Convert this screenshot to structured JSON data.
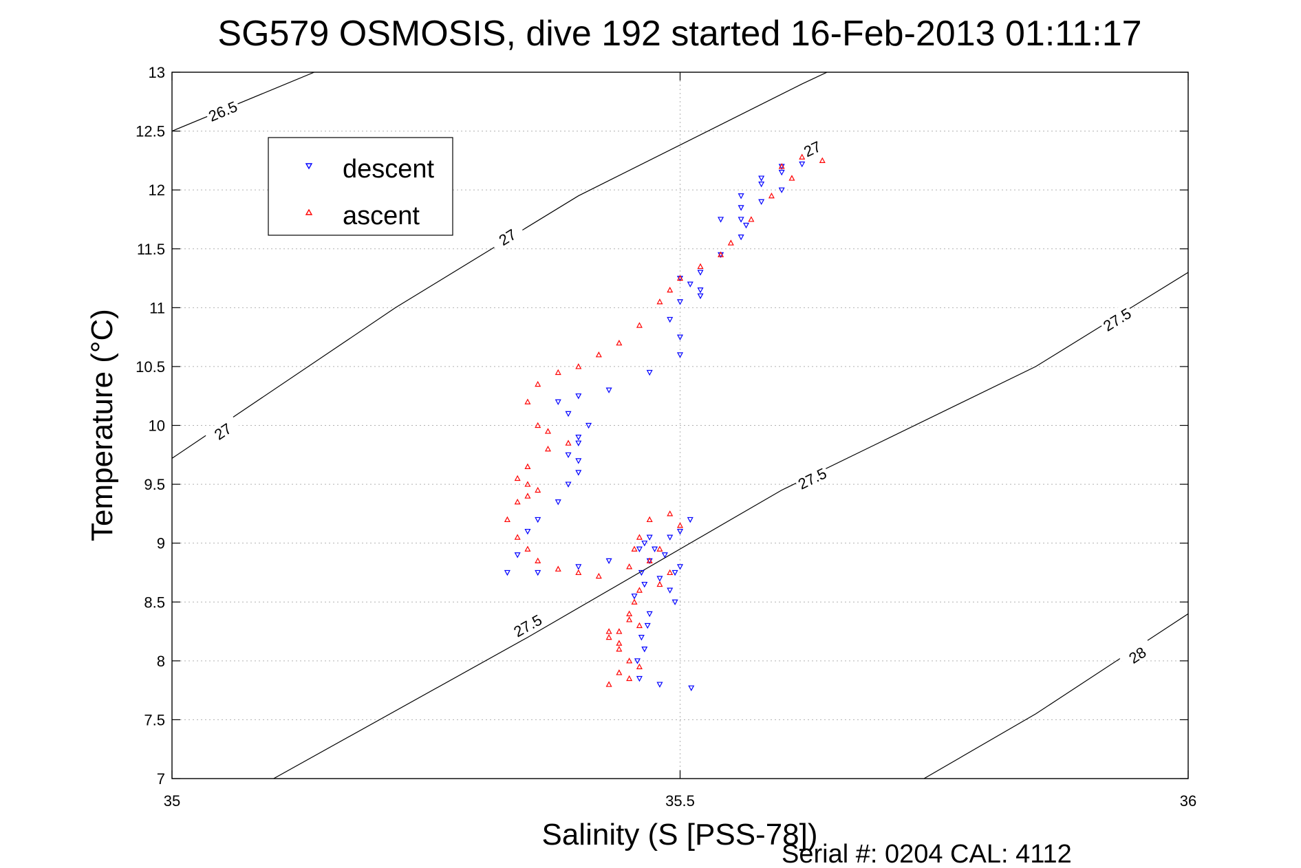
{
  "chart_data": {
    "type": "scatter",
    "title": "SG579 OSMOSIS, dive 192 started 16-Feb-2013 01:11:17",
    "xlabel": "Salinity (S [PSS-78])",
    "ylabel": "Temperature (°C)",
    "xlim": [
      35,
      36
    ],
    "ylim": [
      7,
      13
    ],
    "xticks": [
      35,
      35.5,
      36
    ],
    "xtick_labels": [
      "35",
      "35.5",
      "36"
    ],
    "yticks": [
      7,
      7.5,
      8,
      8.5,
      9,
      9.5,
      10,
      10.5,
      11,
      11.5,
      12,
      12.5,
      13
    ],
    "ytick_labels": [
      "7",
      "7.5",
      "8",
      "8.5",
      "9",
      "9.5",
      "10",
      "10.5",
      "11",
      "11.5",
      "12",
      "12.5",
      "13"
    ],
    "grid": true,
    "legend": {
      "position": "top-left",
      "entries": [
        "descent",
        "ascent"
      ]
    },
    "footer": "Serial #: 0204  CAL: 4112",
    "colors": {
      "descent": "#0000ff",
      "ascent": "#ff0000",
      "contour": "#000000",
      "grid": "#b0b0b0"
    },
    "density_contours": [
      {
        "label": "26.5",
        "points": [
          [
            35.0,
            12.5
          ],
          [
            35.14,
            13.0
          ]
        ],
        "labels": [
          [
            35.05,
            12.67
          ]
        ]
      },
      {
        "label": "27",
        "points": [
          [
            35.0,
            9.72
          ],
          [
            35.22,
            11.0
          ],
          [
            35.4,
            11.95
          ],
          [
            35.62,
            12.9
          ],
          [
            35.78,
            13.55
          ]
        ],
        "labels": [
          [
            35.05,
            9.95
          ],
          [
            35.33,
            11.6
          ],
          [
            35.63,
            12.35
          ]
        ]
      },
      {
        "label": "27.5",
        "points": [
          [
            35.1,
            7.0
          ],
          [
            35.35,
            8.2
          ],
          [
            35.6,
            9.45
          ],
          [
            35.85,
            10.5
          ],
          [
            36.0,
            11.3
          ]
        ],
        "labels": [
          [
            35.35,
            8.3
          ],
          [
            35.63,
            9.55
          ],
          [
            35.93,
            10.9
          ]
        ]
      },
      {
        "label": "28",
        "points": [
          [
            35.74,
            7.0
          ],
          [
            35.85,
            7.55
          ],
          [
            36.0,
            8.4
          ]
        ],
        "labels": [
          [
            35.95,
            8.05
          ]
        ]
      }
    ],
    "series": [
      {
        "name": "descent",
        "marker": "triangle-down",
        "x": [
          35.511,
          35.48,
          35.46,
          35.458,
          35.465,
          35.462,
          35.468,
          35.47,
          35.455,
          35.465,
          35.462,
          35.47,
          35.48,
          35.49,
          35.495,
          35.5,
          35.495,
          35.485,
          35.475,
          35.465,
          35.47,
          35.5,
          35.51,
          35.49,
          35.46,
          35.43,
          35.4,
          35.36,
          35.33,
          35.34,
          35.35,
          35.36,
          35.38,
          35.39,
          35.4,
          35.4,
          35.39,
          35.4,
          35.4,
          35.41,
          35.39,
          35.38,
          35.4,
          35.43,
          35.47,
          35.5,
          35.5,
          35.49,
          35.5,
          35.52,
          35.52,
          35.51,
          35.5,
          35.52,
          35.54,
          35.56,
          35.565,
          35.56,
          35.54,
          35.56,
          35.58,
          35.6,
          35.58,
          35.56,
          35.58,
          35.6,
          35.6,
          35.62
        ],
        "y": [
          7.77,
          7.8,
          7.85,
          8.0,
          8.1,
          8.2,
          8.3,
          8.4,
          8.55,
          8.65,
          8.75,
          8.85,
          8.7,
          8.6,
          8.5,
          8.8,
          8.75,
          8.9,
          8.95,
          9.0,
          9.05,
          9.1,
          9.2,
          9.05,
          8.95,
          8.85,
          8.8,
          8.75,
          8.75,
          8.9,
          9.1,
          9.2,
          9.35,
          9.5,
          9.6,
          9.7,
          9.75,
          9.85,
          9.9,
          10.0,
          10.1,
          10.2,
          10.25,
          10.3,
          10.45,
          10.6,
          10.75,
          10.9,
          11.05,
          11.1,
          11.15,
          11.2,
          11.25,
          11.3,
          11.45,
          11.6,
          11.7,
          11.75,
          11.75,
          11.85,
          11.9,
          12.0,
          12.05,
          11.95,
          12.1,
          12.15,
          12.2,
          12.22
        ]
      },
      {
        "name": "ascent",
        "marker": "triangle-up",
        "x": [
          35.64,
          35.62,
          35.6,
          35.61,
          35.59,
          35.57,
          35.55,
          35.54,
          35.52,
          35.5,
          35.49,
          35.48,
          35.46,
          35.44,
          35.42,
          35.4,
          35.38,
          35.36,
          35.35,
          35.36,
          35.37,
          35.39,
          35.37,
          35.35,
          35.34,
          35.35,
          35.36,
          35.35,
          35.34,
          35.33,
          35.34,
          35.35,
          35.36,
          35.38,
          35.4,
          35.42,
          35.45,
          35.48,
          35.5,
          35.49,
          35.47,
          35.46,
          35.455,
          35.47,
          35.49,
          35.48,
          35.46,
          35.455,
          35.45,
          35.46,
          35.44,
          35.43,
          35.44,
          35.45,
          35.44,
          35.43,
          35.45,
          35.46,
          35.44,
          35.43,
          35.45
        ],
        "y": [
          12.25,
          12.28,
          12.2,
          12.1,
          11.95,
          11.75,
          11.55,
          11.45,
          11.35,
          11.25,
          11.15,
          11.05,
          10.85,
          10.7,
          10.6,
          10.5,
          10.45,
          10.35,
          10.2,
          10.0,
          9.95,
          9.85,
          9.8,
          9.65,
          9.55,
          9.5,
          9.45,
          9.4,
          9.35,
          9.2,
          9.05,
          8.95,
          8.85,
          8.78,
          8.75,
          8.72,
          8.8,
          8.95,
          9.15,
          9.25,
          9.2,
          9.05,
          8.95,
          8.85,
          8.75,
          8.65,
          8.6,
          8.5,
          8.4,
          8.3,
          8.25,
          8.2,
          8.1,
          8.0,
          7.9,
          7.8,
          7.85,
          7.95,
          8.15,
          8.25,
          8.35
        ]
      }
    ]
  }
}
